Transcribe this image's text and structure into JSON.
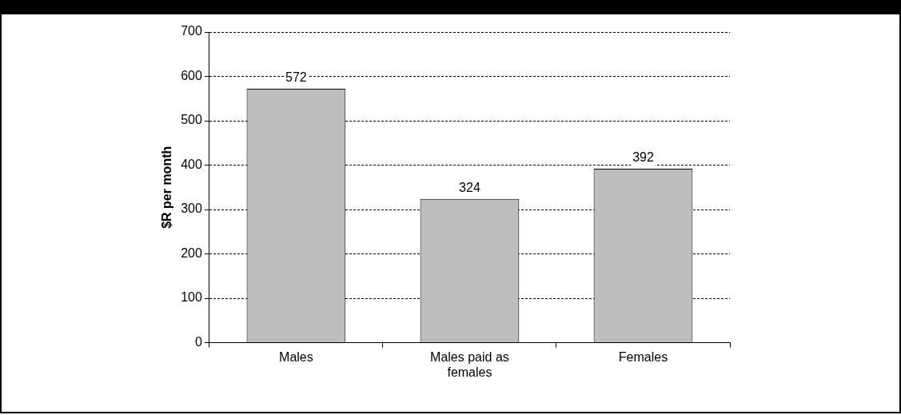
{
  "chart_data": {
    "type": "bar",
    "ylabel": "$R per month",
    "categories": [
      "Males",
      "Males paid as females",
      "Females"
    ],
    "values": [
      572,
      324,
      392
    ],
    "color": "#bdbdbd",
    "ylim": [
      0,
      700
    ],
    "yticks": [
      0,
      100,
      200,
      300,
      400,
      500,
      600,
      700
    ],
    "grid": "y",
    "data_labels": true,
    "legend": false
  }
}
